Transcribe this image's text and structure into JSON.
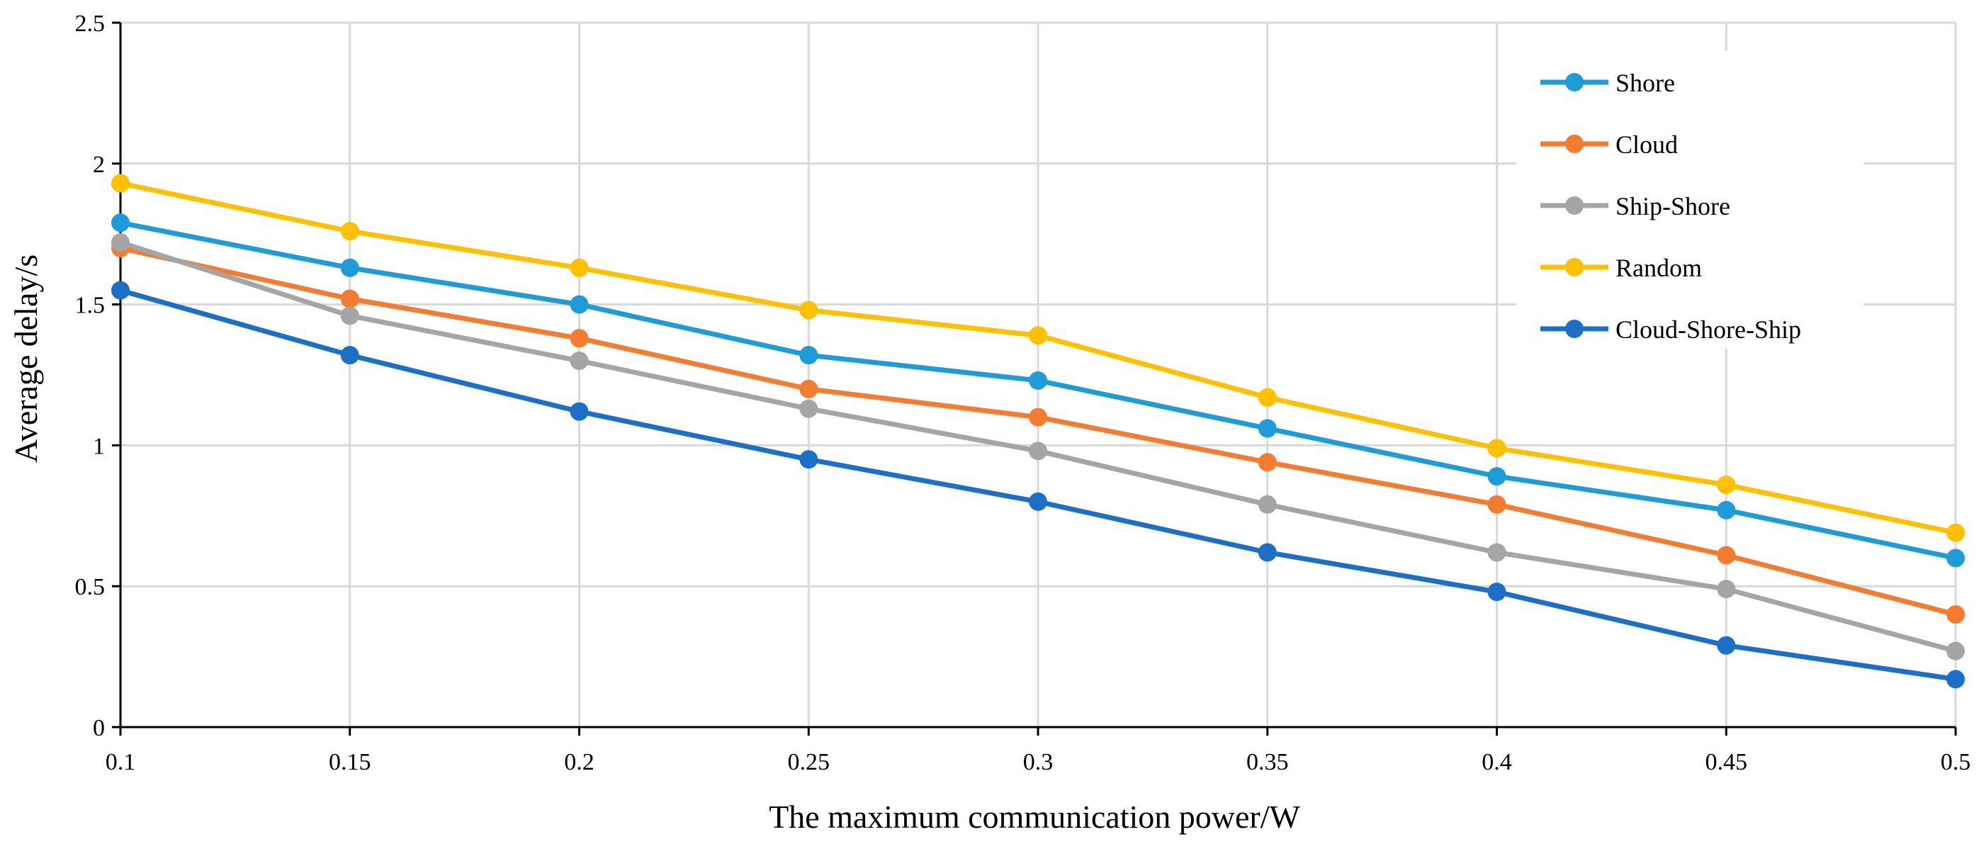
{
  "chart_data": {
    "type": "line",
    "title": "",
    "xlabel": "The maximum communication power/W",
    "ylabel": "Average delay/s",
    "x": [
      0.1,
      0.15,
      0.2,
      0.25,
      0.3,
      0.35,
      0.4,
      0.45,
      0.5
    ],
    "x_tick_labels": [
      "0.1",
      "0.15",
      "0.2",
      "0.25",
      "0.3",
      "0.35",
      "0.4",
      "0.45",
      "0.5"
    ],
    "xlim": [
      0.1,
      0.5
    ],
    "ylim": [
      0,
      2.5
    ],
    "y_ticks": [
      0,
      0.5,
      1,
      1.5,
      2,
      2.5
    ],
    "y_tick_labels": [
      "0",
      "0.5",
      "1",
      "1.5",
      "2",
      "2.5"
    ],
    "grid": true,
    "legend_position": "top-right",
    "series": [
      {
        "name": "Shore",
        "color": "#1f9bd7",
        "values": [
          1.79,
          1.63,
          1.5,
          1.32,
          1.23,
          1.06,
          0.89,
          0.77,
          0.6
        ]
      },
      {
        "name": "Cloud",
        "color": "#f47c30",
        "values": [
          1.7,
          1.52,
          1.38,
          1.2,
          1.1,
          0.94,
          0.79,
          0.61,
          0.4
        ]
      },
      {
        "name": "Ship-Shore",
        "color": "#a5a5a5",
        "values": [
          1.72,
          1.46,
          1.3,
          1.13,
          0.98,
          0.79,
          0.62,
          0.49,
          0.27
        ]
      },
      {
        "name": "Random",
        "color": "#ffc000",
        "values": [
          1.93,
          1.76,
          1.63,
          1.48,
          1.39,
          1.17,
          0.99,
          0.86,
          0.69
        ]
      },
      {
        "name": "Cloud-Shore-Ship",
        "color": "#1c6fc6",
        "values": [
          1.55,
          1.32,
          1.12,
          0.95,
          0.8,
          0.62,
          0.48,
          0.29,
          0.17
        ]
      }
    ]
  }
}
